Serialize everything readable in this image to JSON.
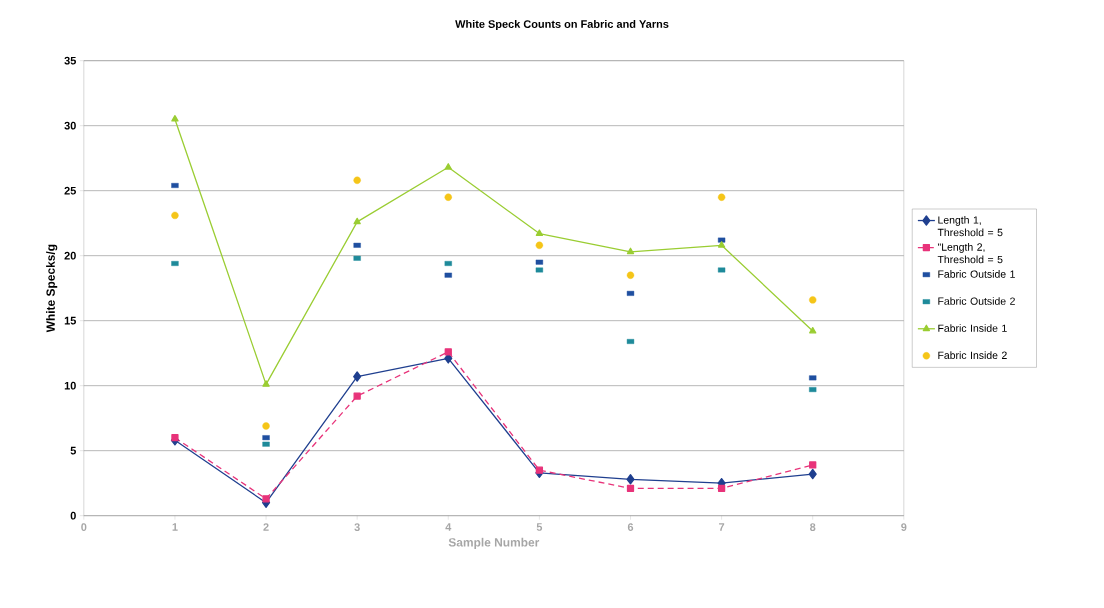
{
  "chart_data": {
    "type": "line",
    "title": "White Speck Counts on Fabric and Yarns",
    "xlabel": "Sample Number",
    "ylabel": "White Specks/g",
    "x": [
      1,
      2,
      3,
      4,
      5,
      6,
      7,
      8
    ],
    "xlim": [
      0,
      9
    ],
    "xticks": [
      0,
      1,
      2,
      3,
      4,
      5,
      6,
      7,
      8,
      9
    ],
    "ylim": [
      0,
      35
    ],
    "yticks": [
      0,
      5,
      10,
      15,
      20,
      25,
      30,
      35
    ],
    "grid": "y",
    "legend": "right",
    "series": [
      {
        "name": "Length 1, Threshold = 5",
        "color": "#1f3f8f",
        "marker": "diamond",
        "line_style": "solid",
        "values": [
          5.8,
          1.0,
          10.7,
          12.1,
          3.3,
          2.8,
          2.5,
          3.2
        ]
      },
      {
        "name": "\"Length 2, Threshold = 5",
        "color": "#e8337a",
        "marker": "square",
        "line_style": "dashed",
        "values": [
          6.0,
          1.3,
          9.2,
          12.6,
          3.5,
          2.1,
          2.1,
          3.9
        ]
      },
      {
        "name": "Fabric Outside 1",
        "type": "scatter",
        "color": "#1f4fa0",
        "marker": "square",
        "values": [
          25.4,
          6.0,
          20.8,
          18.5,
          19.5,
          17.1,
          21.2,
          10.6
        ]
      },
      {
        "name": "Fabric Outside 2",
        "type": "scatter",
        "color": "#1e8a9a",
        "marker": "square",
        "values": [
          19.4,
          5.5,
          19.8,
          19.4,
          18.9,
          13.4,
          18.9,
          9.7
        ]
      },
      {
        "name": "Fabric Inside 1",
        "color": "#9acd32",
        "marker": "triangle",
        "line_style": "solid",
        "values": [
          30.5,
          10.1,
          22.6,
          26.8,
          21.7,
          20.3,
          20.8,
          14.2
        ]
      },
      {
        "name": "Fabric Inside 2",
        "type": "scatter",
        "color": "#f5c518",
        "marker": "circle",
        "values": [
          23.1,
          6.9,
          25.8,
          24.5,
          20.8,
          18.5,
          24.5,
          16.6
        ]
      }
    ]
  }
}
